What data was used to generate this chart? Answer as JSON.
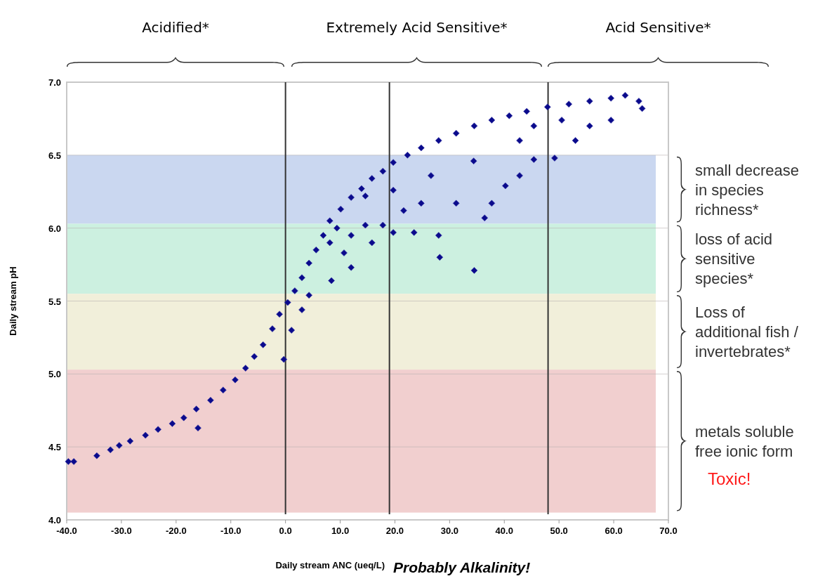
{
  "chart_data": {
    "type": "scatter",
    "xlabel": "Daily stream ANC (ueq/L)",
    "ylabel": "Daily stream pH",
    "marker": "diamond",
    "grid": "y",
    "xlim": [
      -40,
      70
    ],
    "xticks": [
      {
        "value": -40,
        "label": "-40.0"
      },
      {
        "value": -30,
        "label": "-30.0"
      },
      {
        "value": -20,
        "label": "-20.0"
      },
      {
        "value": -10,
        "label": "-10.0"
      },
      {
        "value": 0,
        "label": "0.0"
      },
      {
        "value": 10,
        "label": "10.0"
      },
      {
        "value": 20,
        "label": "20.0"
      },
      {
        "value": 30,
        "label": "30.0"
      },
      {
        "value": 40,
        "label": "40.0"
      },
      {
        "value": 50,
        "label": "50.0"
      },
      {
        "value": 60,
        "label": "60.0"
      },
      {
        "value": 70,
        "label": "70.0"
      }
    ],
    "ylim": [
      4,
      7
    ],
    "yticks": [
      {
        "value": 4,
        "label": "4.0"
      },
      4.5,
      {
        "value": 5,
        "label": "5.0"
      },
      5.5,
      {
        "value": 6,
        "label": "6.0"
      },
      6.5,
      {
        "value": 7,
        "label": "7.0"
      }
    ],
    "series": [
      {
        "color": "#0a0a8c",
        "x": [
          -39.7,
          -38.7,
          -34.5,
          -32,
          -30.4,
          -28.4,
          -25.6,
          -23.3,
          -20.7,
          -18.6,
          -16.3,
          -16,
          -13.7,
          -11.4,
          -9.2,
          -7.3,
          -5.7,
          -4.1,
          -2.4,
          -1.1,
          -0.3,
          0.4,
          1.1,
          1.7,
          3,
          3,
          4.3,
          4.3,
          5.6,
          6.9,
          8.1,
          8.1,
          8.4,
          9.4,
          10.1,
          10.7,
          12,
          12,
          12,
          13.9,
          14.6,
          14.6,
          15.8,
          15.8,
          17.8,
          17.8,
          19.7,
          19.7,
          19.7,
          21.6,
          22.3,
          23.5,
          24.8,
          24.8,
          26.6,
          28,
          28,
          28.2,
          31.2,
          31.2,
          34.4,
          34.5,
          34.5,
          36.4,
          37.7,
          37.7,
          40.2,
          40.9,
          42.8,
          42.8,
          44.1,
          45.4,
          45.4,
          47.9,
          49.2,
          50.5,
          51.8,
          53,
          55.6,
          55.6,
          59.5,
          59.5,
          62.1,
          64.6,
          65.2
        ],
        "values": [
          4.4,
          4.4,
          4.44,
          4.48,
          4.51,
          4.54,
          4.58,
          4.62,
          4.66,
          4.7,
          4.76,
          4.63,
          4.82,
          4.89,
          4.96,
          5.04,
          5.12,
          5.2,
          5.31,
          5.41,
          5.1,
          5.49,
          5.3,
          5.57,
          5.44,
          5.66,
          5.76,
          5.54,
          5.85,
          5.95,
          6.05,
          5.9,
          5.64,
          6,
          6.13,
          5.83,
          6.21,
          5.95,
          5.73,
          6.27,
          6.02,
          6.22,
          6.34,
          5.9,
          6.39,
          6.02,
          6.45,
          5.97,
          6.26,
          6.12,
          6.5,
          5.97,
          6.55,
          6.17,
          6.36,
          6.6,
          5.95,
          5.8,
          6.65,
          6.17,
          6.46,
          6.7,
          5.71,
          6.07,
          6.74,
          6.17,
          6.29,
          6.77,
          6.36,
          6.6,
          6.8,
          6.47,
          6.7,
          6.83,
          6.48,
          6.74,
          6.85,
          6.6,
          6.87,
          6.7,
          6.89,
          6.74,
          6.91,
          6.87,
          6.82
        ]
      }
    ],
    "ref_lines": [
      {
        "axis": "x",
        "value": 0,
        "color": "#333333"
      },
      {
        "axis": "x",
        "value": 19,
        "color": "#333333"
      },
      {
        "axis": "x",
        "value": 48,
        "color": "#333333"
      }
    ],
    "bands": [
      {
        "axis": "y",
        "from": 6.03,
        "to": 6.5,
        "color": "#c4d3ee",
        "label": "small decrease\nin species\nrichness*"
      },
      {
        "axis": "y",
        "from": 5.55,
        "to": 6.03,
        "color": "#c6eedd",
        "label": "loss of acid\nsensitive\nspecies*"
      },
      {
        "axis": "y",
        "from": 5.03,
        "to": 5.55,
        "color": "#efedd6",
        "label": "Loss of\nadditional fish /\ninvertebrates*"
      },
      {
        "axis": "y",
        "from": 4.05,
        "to": 5.03,
        "color": "#f0caca",
        "label": "metals soluble\nfree ionic form"
      }
    ],
    "annotations": [
      "Acidified*",
      "Extremely Acid Sensitive*",
      "Acid Sensitive*",
      "Probably Alkalinity!",
      "Toxic!"
    ]
  }
}
